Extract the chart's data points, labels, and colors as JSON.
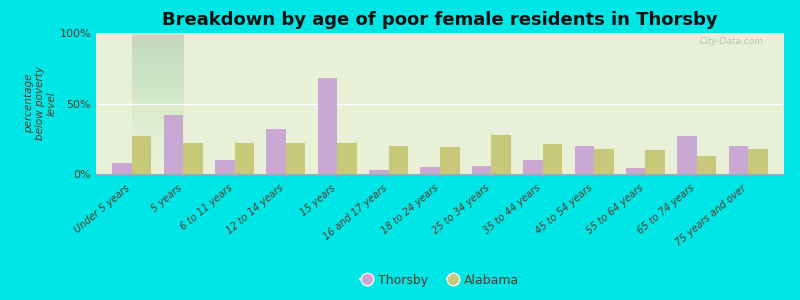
{
  "title": "Breakdown by age of poor female residents in Thorsby",
  "ylabel": "percentage\nbelow poverty\nlevel",
  "categories": [
    "Under 5 years",
    "5 years",
    "6 to 11 years",
    "12 to 14 years",
    "15 years",
    "16 and 17 years",
    "18 to 24 years",
    "25 to 34 years",
    "35 to 44 years",
    "45 to 54 years",
    "55 to 64 years",
    "65 to 74 years",
    "75 years and over"
  ],
  "thorsby_values": [
    8,
    42,
    10,
    32,
    68,
    3,
    5,
    6,
    10,
    20,
    4,
    27,
    20
  ],
  "alabama_values": [
    27,
    22,
    22,
    22,
    22,
    20,
    19,
    28,
    21,
    18,
    17,
    13,
    18
  ],
  "thorsby_color": "#c9a8d4",
  "alabama_color": "#c8c87a",
  "outer_bg_color": "#00e5e5",
  "plot_bg_top": "#e8f0d8",
  "plot_bg_bottom": "#f8fff8",
  "ylim": [
    0,
    100
  ],
  "yticks": [
    0,
    50,
    100
  ],
  "ytick_labels": [
    "0%",
    "50%",
    "100%"
  ],
  "title_fontsize": 13,
  "label_fontsize": 7,
  "ylabel_fontsize": 7.5,
  "legend_labels": [
    "Thorsby",
    "Alabama"
  ],
  "bar_width": 0.38,
  "tick_color": "#5a3a2a",
  "label_color": "#5a3a2a"
}
